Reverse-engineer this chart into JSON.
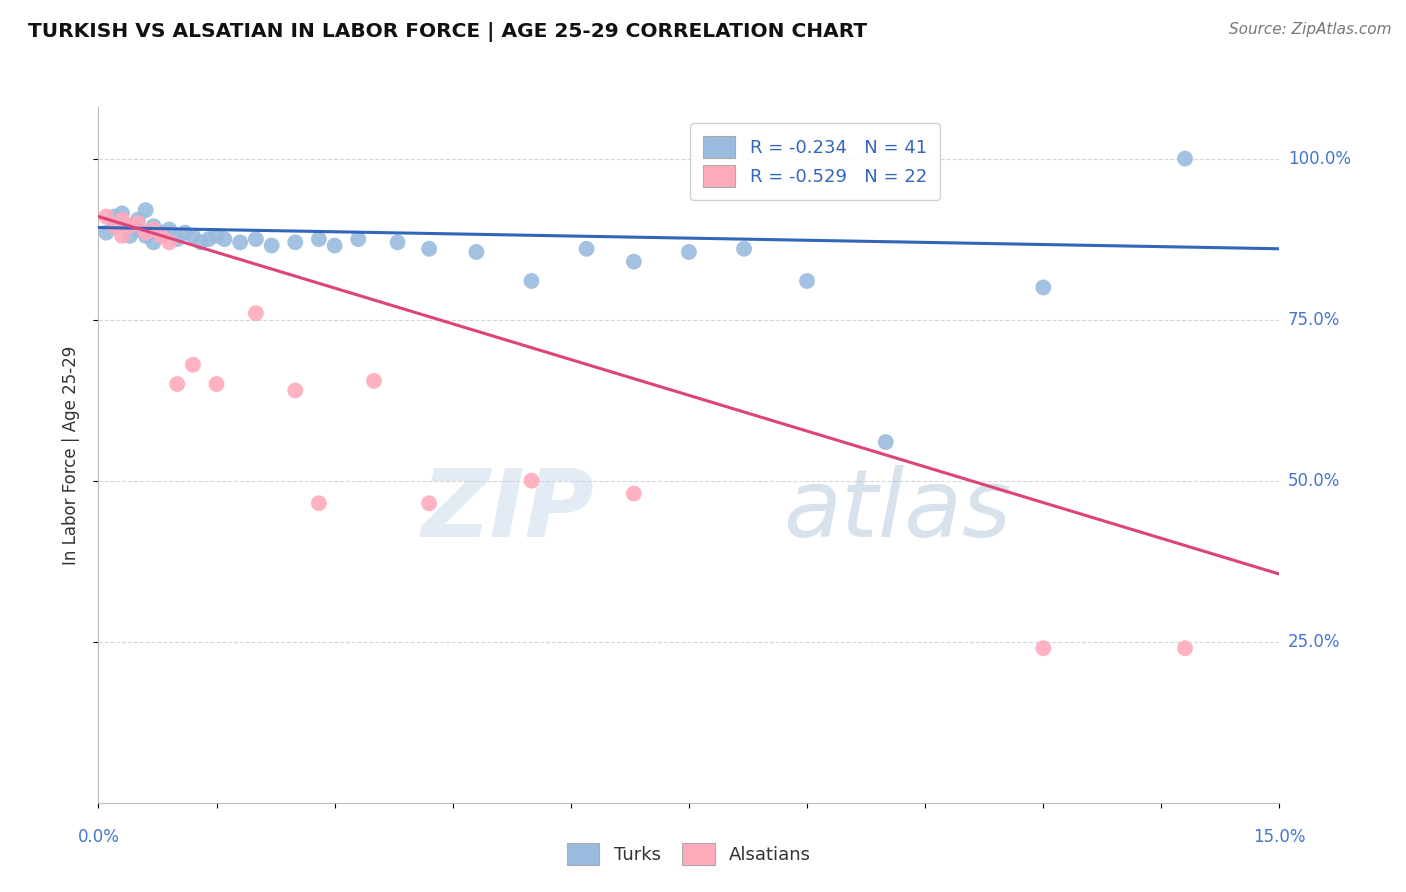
{
  "title": "TURKISH VS ALSATIAN IN LABOR FORCE | AGE 25-29 CORRELATION CHART",
  "source": "Source: ZipAtlas.com",
  "ylabel": "In Labor Force | Age 25-29",
  "ytick_labels": [
    "25.0%",
    "50.0%",
    "75.0%",
    "100.0%"
  ],
  "ytick_values": [
    0.25,
    0.5,
    0.75,
    1.0
  ],
  "xmin": 0.0,
  "xmax": 0.15,
  "ymin": 0.0,
  "ymax": 1.08,
  "legend_blue_R": "R = -0.234",
  "legend_blue_N": "N = 41",
  "legend_pink_R": "R = -0.529",
  "legend_pink_N": "N = 22",
  "blue_color": "#99BBDD",
  "pink_color": "#FFAABB",
  "blue_line_color": "#3366BB",
  "pink_line_color": "#DD4477",
  "turks_x": [
    0.001,
    0.002,
    0.002,
    0.003,
    0.003,
    0.004,
    0.004,
    0.005,
    0.005,
    0.006,
    0.006,
    0.007,
    0.007,
    0.008,
    0.009,
    0.01,
    0.011,
    0.012,
    0.013,
    0.014,
    0.015,
    0.016,
    0.018,
    0.02,
    0.022,
    0.025,
    0.028,
    0.03,
    0.033,
    0.038,
    0.042,
    0.048,
    0.055,
    0.062,
    0.068,
    0.075,
    0.082,
    0.09,
    0.1,
    0.12,
    0.138
  ],
  "turks_y": [
    0.885,
    0.91,
    0.895,
    0.9,
    0.915,
    0.895,
    0.88,
    0.905,
    0.89,
    0.92,
    0.88,
    0.895,
    0.87,
    0.885,
    0.89,
    0.875,
    0.885,
    0.88,
    0.87,
    0.875,
    0.88,
    0.875,
    0.87,
    0.875,
    0.865,
    0.87,
    0.875,
    0.865,
    0.875,
    0.87,
    0.86,
    0.855,
    0.81,
    0.86,
    0.84,
    0.855,
    0.86,
    0.81,
    0.56,
    0.8,
    1.0
  ],
  "alsatians_x": [
    0.001,
    0.002,
    0.003,
    0.003,
    0.004,
    0.005,
    0.006,
    0.007,
    0.008,
    0.009,
    0.01,
    0.012,
    0.015,
    0.02,
    0.025,
    0.028,
    0.035,
    0.042,
    0.055,
    0.068,
    0.12,
    0.138
  ],
  "alsatians_y": [
    0.91,
    0.895,
    0.905,
    0.88,
    0.895,
    0.9,
    0.885,
    0.89,
    0.88,
    0.87,
    0.65,
    0.68,
    0.65,
    0.76,
    0.64,
    0.465,
    0.655,
    0.465,
    0.5,
    0.48,
    0.24,
    0.24
  ],
  "blue_trend_x": [
    0.0,
    0.15
  ],
  "blue_trend_y": [
    0.893,
    0.86
  ],
  "pink_trend_x": [
    0.0,
    0.15
  ],
  "pink_trend_y": [
    0.91,
    0.355
  ],
  "watermark_line1": "ZIP",
  "watermark_line2": "atlas",
  "background_color": "#FFFFFF",
  "grid_color": "#CCCCCC",
  "grid_linestyle": "--"
}
